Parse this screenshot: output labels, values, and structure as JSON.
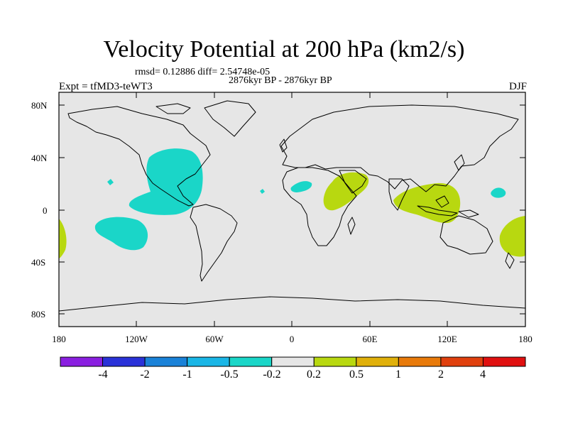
{
  "header": {
    "title": "Velocity Potential at 200 hPa (km2/s)",
    "stats": "rmsd= 0.12886 diff= 2.54748e-05",
    "period": "2876kyr BP - 2876kyr BP",
    "experiment": "Expt = tfMD3-teWT3",
    "season": "DJF"
  },
  "axes": {
    "lat_labels": [
      "80N",
      "40N",
      "0",
      "40S",
      "80S"
    ],
    "lon_labels": [
      "180",
      "120W",
      "60W",
      "0",
      "60E",
      "120E",
      "180"
    ]
  },
  "legend": {
    "thresholds": [
      "-4",
      "-2",
      "-1",
      "-0.5",
      "-0.2",
      "0.2",
      "0.5",
      "1",
      "2",
      "4"
    ],
    "colors": [
      "#8a1fe0",
      "#2a32d8",
      "#1a82d8",
      "#1ab6e6",
      "#1ad6c8",
      "#e6e6e6",
      "#b8d810",
      "#e0b00a",
      "#e87a0a",
      "#e0400e",
      "#e01010"
    ]
  },
  "colors": {
    "ocean_bg": "#e6e6e6",
    "negative_anomaly": "#1ad6c8",
    "positive_anomaly": "#b8d810"
  }
}
